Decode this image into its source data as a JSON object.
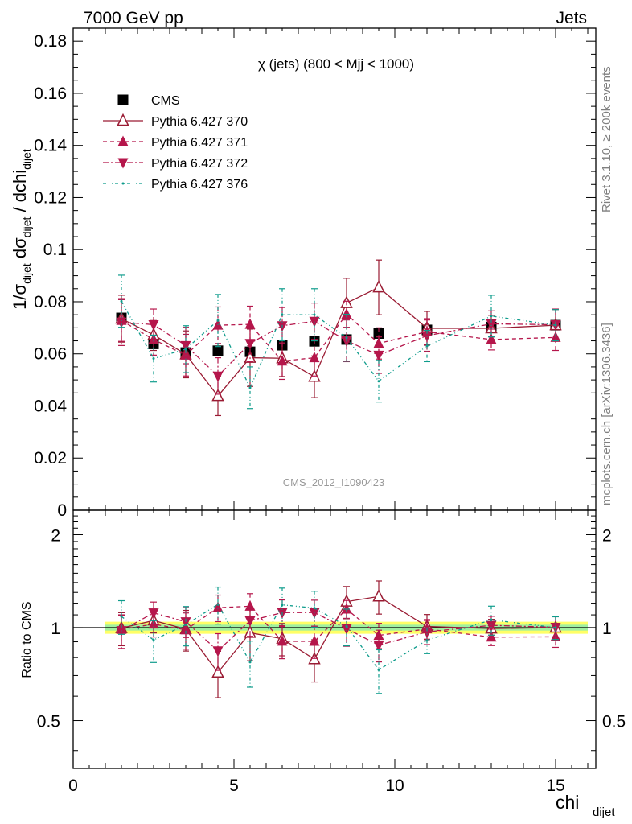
{
  "header": {
    "left": "7000 GeV pp",
    "right": "Jets"
  },
  "side_labels": {
    "rivet": "Rivet 3.1.10, ≥ 200k events",
    "mcplots": "mcplots.cern.ch [arXiv:1306.3436]"
  },
  "chart_data": [
    {
      "type": "scatter",
      "title": "χ (jets) (800 < Mjj < 1000)",
      "watermark": "CMS_2012_I1090423",
      "xlabel": "chi",
      "xlabel_sub": "dijet",
      "ylabel_parts": [
        "1/σ",
        "dijet",
        " dσ",
        "dijet",
        " / dchi",
        "dijet"
      ],
      "xlim": [
        0,
        16.25
      ],
      "ylim": [
        0,
        0.185
      ],
      "yticks": [
        "0",
        "0.02",
        "0.04",
        "0.06",
        "0.08",
        "0.1",
        "0.12",
        "0.14",
        "0.16",
        "0.18"
      ],
      "legend_position": "top-left",
      "x": [
        1.5,
        2.5,
        3.5,
        4.5,
        5.5,
        6.5,
        7.5,
        8.5,
        9.5,
        11,
        13,
        15
      ],
      "series": [
        {
          "name": "CMS",
          "marker": "square",
          "color": "#000000",
          "line": "none",
          "values": [
            0.0738,
            0.0638,
            0.0605,
            0.0612,
            0.0608,
            0.0633,
            0.0648,
            0.0655,
            0.0678,
            0.0692,
            0.0703,
            0.071
          ]
        },
        {
          "name": "Pythia 6.427 370",
          "marker": "triangle-up-open",
          "color": "#9a1b33",
          "line": "solid",
          "values": [
            0.0735,
            0.0673,
            0.0598,
            0.0438,
            0.0585,
            0.0583,
            0.0512,
            0.0795,
            0.0855,
            0.0698,
            0.0698,
            0.071
          ],
          "errors": [
            0.009,
            0.006,
            0.009,
            0.0075,
            0.011,
            0.007,
            0.008,
            0.0095,
            0.0105,
            0.0065,
            0.005,
            0.006
          ]
        },
        {
          "name": "Pythia 6.427 371",
          "marker": "triangle-up",
          "color": "#b5164b",
          "line": "dashed",
          "values": [
            0.0728,
            0.0655,
            0.0595,
            0.071,
            0.0713,
            0.0572,
            0.0585,
            0.0752,
            0.064,
            0.0685,
            0.0655,
            0.0663
          ],
          "errors": [
            0.008,
            0.006,
            0.008,
            0.007,
            0.007,
            0.007,
            0.007,
            0.005,
            0.006,
            0.005,
            0.004,
            0.005
          ]
        },
        {
          "name": "Pythia 6.427 372",
          "marker": "triangle-down",
          "color": "#b5164b",
          "line": "dashdot",
          "values": [
            0.0722,
            0.0712,
            0.0632,
            0.0515,
            0.064,
            0.0708,
            0.0725,
            0.065,
            0.0595,
            0.067,
            0.0715,
            0.0712
          ],
          "errors": [
            0.009,
            0.006,
            0.007,
            0.007,
            0.007,
            0.007,
            0.007,
            0.008,
            0.007,
            0.006,
            0.005,
            0.006
          ]
        },
        {
          "name": "Pythia 6.427 376",
          "marker": "point",
          "color": "#0f9c8c",
          "line": "dashdotdot",
          "values": [
            0.0802,
            0.0582,
            0.0618,
            0.0728,
            0.047,
            0.075,
            0.075,
            0.0662,
            0.0495,
            0.063,
            0.0745,
            0.071
          ],
          "errors": [
            0.01,
            0.009,
            0.009,
            0.01,
            0.008,
            0.01,
            0.01,
            0.009,
            0.008,
            0.006,
            0.008,
            0.006
          ]
        }
      ]
    },
    {
      "type": "scatter",
      "ylabel": "Ratio to CMS",
      "xlim": [
        0,
        16.25
      ],
      "ylim": [
        0.35,
        2.4
      ],
      "log_y": true,
      "xticks": [
        "0",
        "5",
        "10",
        "15"
      ],
      "yticks": [
        "0.5",
        "1",
        "2"
      ],
      "band_range_x": [
        1,
        16
      ],
      "band_colors": [
        "#ffff66",
        "#a0f0a0"
      ],
      "series_from_ratio": true
    }
  ]
}
